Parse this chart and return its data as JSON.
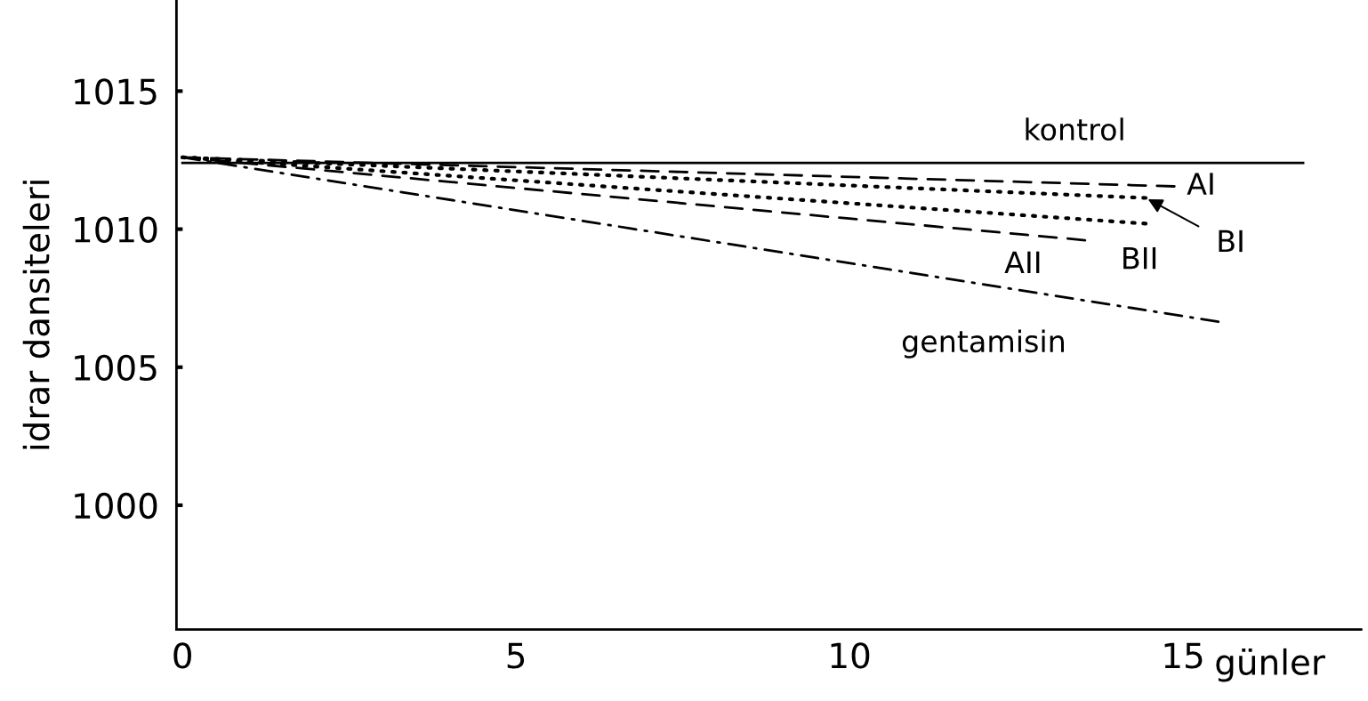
{
  "chart_data": {
    "type": "line",
    "xlabel": "günler",
    "ylabel": "idrar dansiteleri",
    "xlim": [
      -0.09,
      17.67
    ],
    "ylim": [
      995.5,
      1018.3
    ],
    "xticks": [
      0,
      5,
      10,
      15
    ],
    "yticks": [
      1000,
      1005,
      1010,
      1015
    ],
    "grid": false,
    "legend": false,
    "marker": "none",
    "series": [
      {
        "name": "kontrol",
        "color": "#000000",
        "line_style": "solid",
        "x": [
          0,
          16.8
        ],
        "values": [
          1012.4,
          1012.4
        ]
      },
      {
        "name": "AI",
        "color": "#000000",
        "line_style": "dashed",
        "x": [
          0,
          14.87
        ],
        "values": [
          1012.6,
          1011.55
        ]
      },
      {
        "name": "BI",
        "color": "#000000",
        "line_style": "dotted",
        "x": [
          0,
          14.44
        ],
        "values": [
          1012.6,
          1011.13
        ]
      },
      {
        "name": "BII",
        "color": "#000000",
        "line_style": "dotted",
        "x": [
          0,
          14.44
        ],
        "values": [
          1012.6,
          1010.2
        ]
      },
      {
        "name": "AII",
        "color": "#000000",
        "line_style": "dashed",
        "x": [
          0,
          13.53
        ],
        "values": [
          1012.6,
          1009.6
        ]
      },
      {
        "name": "gentamisin",
        "color": "#000000",
        "line_style": "dashdot",
        "x": [
          0,
          15.53
        ],
        "values": [
          1012.6,
          1006.65
        ]
      }
    ]
  }
}
